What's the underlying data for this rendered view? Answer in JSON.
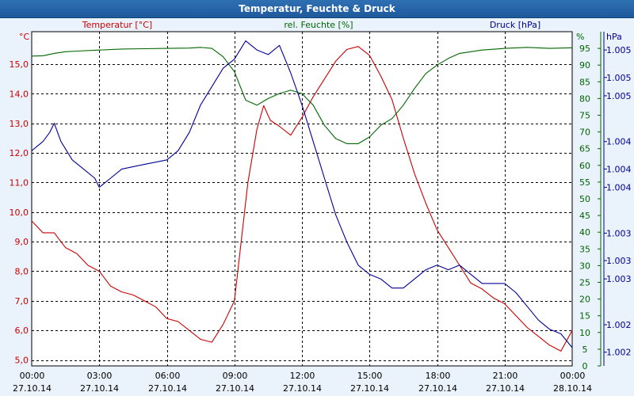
{
  "window": {
    "title": "Temperatur, Feuchte & Druck"
  },
  "chart_data": {
    "type": "line",
    "x_ticks": [
      {
        "time": "00:00",
        "date": "27.10.14"
      },
      {
        "time": "03:00",
        "date": "27.10.14"
      },
      {
        "time": "06:00",
        "date": "27.10.14"
      },
      {
        "time": "09:00",
        "date": "27.10.14"
      },
      {
        "time": "12:00",
        "date": "27.10.14"
      },
      {
        "time": "15:00",
        "date": "27.10.14"
      },
      {
        "time": "18:00",
        "date": "27.10.14"
      },
      {
        "time": "21:00",
        "date": "27.10.14"
      },
      {
        "time": "00:00",
        "date": "28.10.14"
      }
    ],
    "x_range_hours": [
      0,
      24
    ],
    "grid": true,
    "axes": {
      "temperature": {
        "label": "Temperatur [°C]",
        "unit": "°C",
        "color": "#cc0000",
        "ylim": [
          4.8,
          16.1
        ],
        "ticks": [
          "5,0",
          "6,0",
          "7,0",
          "8,0",
          "9,0",
          "10,0",
          "11,0",
          "12,0",
          "13,0",
          "14,0",
          "15,0"
        ]
      },
      "humidity": {
        "label": "rel. Feuchte [%]",
        "unit": "%",
        "color": "#006600",
        "ylim": [
          0,
          100
        ],
        "ticks": [
          "0",
          "5",
          "10",
          "15",
          "20",
          "25",
          "30",
          "35",
          "40",
          "45",
          "50",
          "55",
          "60",
          "65",
          "70",
          "75",
          "80",
          "85",
          "90",
          "95"
        ]
      },
      "pressure": {
        "label": "Druck [hPa]",
        "unit": "hPa",
        "color": "#000099",
        "ylim": [
          1001.65,
          1005.3
        ],
        "ticks": [
          {
            "v": 1001.8,
            "l": "1.002"
          },
          {
            "v": 1002.1,
            "l": "1.002"
          },
          {
            "v": 1002.6,
            "l": "1.003"
          },
          {
            "v": 1002.8,
            "l": "1.003"
          },
          {
            "v": 1003.1,
            "l": "1.003"
          },
          {
            "v": 1003.6,
            "l": "1.004"
          },
          {
            "v": 1003.8,
            "l": "1.004"
          },
          {
            "v": 1004.1,
            "l": "1.004"
          },
          {
            "v": 1004.6,
            "l": "1.005"
          },
          {
            "v": 1004.8,
            "l": "1.005"
          },
          {
            "v": 1005.1,
            "l": "1.005"
          }
        ]
      }
    },
    "series": [
      {
        "name": "Temperatur [°C]",
        "axis": "temperature",
        "color": "#cc0000",
        "points": [
          [
            0,
            9.7
          ],
          [
            0.5,
            9.3
          ],
          [
            1,
            9.3
          ],
          [
            1.5,
            8.8
          ],
          [
            2,
            8.6
          ],
          [
            2.5,
            8.2
          ],
          [
            3,
            8.0
          ],
          [
            3.5,
            7.5
          ],
          [
            4,
            7.3
          ],
          [
            4.5,
            7.2
          ],
          [
            5,
            7.0
          ],
          [
            5.5,
            6.8
          ],
          [
            6,
            6.4
          ],
          [
            6.5,
            6.3
          ],
          [
            7,
            6.0
          ],
          [
            7.5,
            5.7
          ],
          [
            8,
            5.6
          ],
          [
            8.5,
            6.2
          ],
          [
            9,
            7.0
          ],
          [
            9.3,
            9.0
          ],
          [
            9.6,
            11.0
          ],
          [
            10,
            12.8
          ],
          [
            10.3,
            13.6
          ],
          [
            10.6,
            13.1
          ],
          [
            11,
            12.9
          ],
          [
            11.5,
            12.6
          ],
          [
            12,
            13.2
          ],
          [
            12.5,
            13.9
          ],
          [
            13,
            14.5
          ],
          [
            13.5,
            15.1
          ],
          [
            14,
            15.5
          ],
          [
            14.5,
            15.6
          ],
          [
            15,
            15.3
          ],
          [
            15.5,
            14.6
          ],
          [
            16,
            13.8
          ],
          [
            16.5,
            12.5
          ],
          [
            17,
            11.3
          ],
          [
            17.5,
            10.3
          ],
          [
            18,
            9.4
          ],
          [
            18.5,
            8.8
          ],
          [
            19,
            8.2
          ],
          [
            19.5,
            7.6
          ],
          [
            20,
            7.4
          ],
          [
            20.5,
            7.1
          ],
          [
            21,
            6.9
          ],
          [
            21.5,
            6.5
          ],
          [
            22,
            6.1
          ],
          [
            22.5,
            5.8
          ],
          [
            23,
            5.5
          ],
          [
            23.5,
            5.3
          ],
          [
            24,
            6.0
          ]
        ]
      },
      {
        "name": "rel. Feuchte [%]",
        "axis": "humidity",
        "color": "#006600",
        "points": [
          [
            0,
            92.7
          ],
          [
            0.5,
            92.8
          ],
          [
            1,
            93.5
          ],
          [
            1.5,
            94.0
          ],
          [
            2,
            94.2
          ],
          [
            3,
            94.5
          ],
          [
            4,
            94.8
          ],
          [
            5,
            94.9
          ],
          [
            6,
            95.0
          ],
          [
            7,
            95.1
          ],
          [
            7.5,
            95.3
          ],
          [
            8,
            95.0
          ],
          [
            8.5,
            92.5
          ],
          [
            9,
            88.0
          ],
          [
            9.5,
            79.5
          ],
          [
            10,
            78.0
          ],
          [
            10.5,
            80.0
          ],
          [
            11,
            81.5
          ],
          [
            11.5,
            82.5
          ],
          [
            12,
            81.5
          ],
          [
            12.5,
            78.0
          ],
          [
            13,
            72.0
          ],
          [
            13.5,
            68.0
          ],
          [
            14,
            66.5
          ],
          [
            14.5,
            66.5
          ],
          [
            15,
            68.5
          ],
          [
            15.5,
            72.0
          ],
          [
            16,
            74.0
          ],
          [
            16.5,
            78.0
          ],
          [
            17,
            83.0
          ],
          [
            17.5,
            87.5
          ],
          [
            18,
            90.0
          ],
          [
            18.5,
            92.0
          ],
          [
            19,
            93.5
          ],
          [
            20,
            94.5
          ],
          [
            21,
            95.0
          ],
          [
            22,
            95.3
          ],
          [
            23,
            95.0
          ],
          [
            24,
            95.2
          ]
        ]
      },
      {
        "name": "Druck [hPa]",
        "axis": "pressure",
        "color": "#000099",
        "points": [
          [
            0,
            1004.0
          ],
          [
            0.5,
            1004.1
          ],
          [
            0.8,
            1004.2
          ],
          [
            1,
            1004.3
          ],
          [
            1.3,
            1004.1
          ],
          [
            1.8,
            1003.9
          ],
          [
            2.3,
            1003.8
          ],
          [
            2.8,
            1003.7
          ],
          [
            3,
            1003.6
          ],
          [
            3.5,
            1003.7
          ],
          [
            4,
            1003.8
          ],
          [
            5,
            1003.85
          ],
          [
            6,
            1003.9
          ],
          [
            6.5,
            1004.0
          ],
          [
            7,
            1004.2
          ],
          [
            7.5,
            1004.5
          ],
          [
            8,
            1004.7
          ],
          [
            8.5,
            1004.9
          ],
          [
            9,
            1005.0
          ],
          [
            9.5,
            1005.2
          ],
          [
            10,
            1005.1
          ],
          [
            10.5,
            1005.05
          ],
          [
            11,
            1005.15
          ],
          [
            11.5,
            1004.85
          ],
          [
            12,
            1004.5
          ],
          [
            12.5,
            1004.1
          ],
          [
            13,
            1003.7
          ],
          [
            13.5,
            1003.3
          ],
          [
            14,
            1003.0
          ],
          [
            14.5,
            1002.75
          ],
          [
            15,
            1002.65
          ],
          [
            15.5,
            1002.6
          ],
          [
            16,
            1002.5
          ],
          [
            16.5,
            1002.5
          ],
          [
            17,
            1002.6
          ],
          [
            17.5,
            1002.7
          ],
          [
            18,
            1002.75
          ],
          [
            18.5,
            1002.7
          ],
          [
            19,
            1002.75
          ],
          [
            19.5,
            1002.65
          ],
          [
            20,
            1002.55
          ],
          [
            20.5,
            1002.55
          ],
          [
            21,
            1002.55
          ],
          [
            21.5,
            1002.45
          ],
          [
            22,
            1002.3
          ],
          [
            22.5,
            1002.15
          ],
          [
            23,
            1002.05
          ],
          [
            23.5,
            1002.0
          ],
          [
            24,
            1001.85
          ]
        ]
      }
    ]
  }
}
